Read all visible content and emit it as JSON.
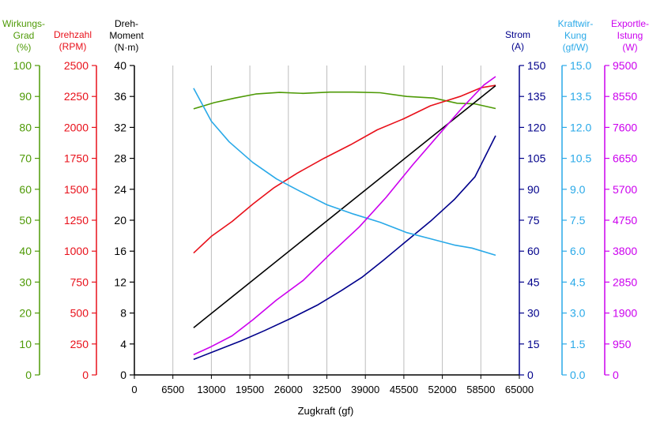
{
  "chart_data": {
    "type": "line",
    "xlabel": "Zugkraft (gf)",
    "xlim": [
      0,
      65000
    ],
    "xticks": [
      "0",
      "6500",
      "13000",
      "19500",
      "26000",
      "32500",
      "39000",
      "45500",
      "52000",
      "58500",
      "65000"
    ],
    "grid": "vertical",
    "axes": [
      {
        "id": "wirkungsgrad",
        "title": [
          "Wirkungs-",
          "Grad",
          "(%)"
        ],
        "color": "#4e9a06",
        "min": 0,
        "max": 100,
        "ticks": [
          "0",
          "10",
          "20",
          "30",
          "40",
          "50",
          "60",
          "70",
          "80",
          "90",
          "100"
        ]
      },
      {
        "id": "drehzahl",
        "title": [
          "Drehzahl",
          "(RPM)"
        ],
        "color": "#e8101a",
        "min": 0,
        "max": 2500,
        "ticks": [
          "0",
          "250",
          "500",
          "750",
          "1000",
          "1250",
          "1500",
          "1750",
          "2000",
          "2250",
          "2500"
        ]
      },
      {
        "id": "drehmoment",
        "title": [
          "Dreh-",
          "Moment",
          "(N·m)"
        ],
        "color": "#000000",
        "min": 0,
        "max": 40,
        "ticks": [
          "0",
          "4",
          "8",
          "12",
          "16",
          "20",
          "24",
          "28",
          "32",
          "36",
          "40"
        ]
      },
      {
        "id": "strom",
        "title": [
          "Strom",
          "(A)"
        ],
        "color": "#00008b",
        "min": 0,
        "max": 150,
        "ticks": [
          "0",
          "15",
          "30",
          "45",
          "60",
          "75",
          "90",
          "105",
          "120",
          "135",
          "150"
        ]
      },
      {
        "id": "kraftwirkung",
        "title": [
          "Kraftwir-",
          "Kung",
          "(gf/W)"
        ],
        "color": "#29a9e8",
        "min": 0,
        "max": 15,
        "ticks": [
          "0.0",
          "1.5",
          "3.0",
          "4.5",
          "6.0",
          "7.5",
          "9.0",
          "10.5",
          "12.0",
          "13.5",
          "15.0"
        ]
      },
      {
        "id": "exportleistung",
        "title": [
          "Exportle-",
          "Istung",
          "(W)"
        ],
        "color": "#cc00ee",
        "min": 0,
        "max": 9500,
        "ticks": [
          "0",
          "950",
          "1900",
          "2850",
          "3800",
          "4750",
          "5700",
          "6650",
          "7600",
          "8550",
          "9500"
        ]
      }
    ],
    "series": [
      {
        "axis": "wirkungsgrad",
        "color": "#4e9a06",
        "x": [
          10000,
          13500,
          17000,
          20500,
          24500,
          28500,
          33000,
          37000,
          41500,
          46000,
          50500,
          54500,
          57500,
          61000
        ],
        "y": [
          86,
          88,
          89.5,
          90.8,
          91.3,
          91,
          91.4,
          91.4,
          91.2,
          90,
          89.5,
          87.8,
          87.6,
          86.1
        ]
      },
      {
        "axis": "drehzahl",
        "color": "#e8101a",
        "x": [
          10000,
          13000,
          16500,
          20000,
          23500,
          27500,
          32000,
          36500,
          41000,
          45500,
          50000,
          55000,
          58500,
          61000
        ],
        "y": [
          985,
          1120,
          1240,
          1380,
          1510,
          1630,
          1750,
          1860,
          1980,
          2070,
          2175,
          2250,
          2320,
          2340
        ]
      },
      {
        "axis": "drehmoment",
        "color": "#000000",
        "x": [
          10000,
          61000
        ],
        "y": [
          6.1,
          37.4
        ]
      },
      {
        "axis": "strom",
        "color": "#00008b",
        "x": [
          10000,
          14000,
          18000,
          22000,
          26500,
          31000,
          35000,
          38500,
          42000,
          46000,
          50000,
          54000,
          57500,
          61000
        ],
        "y": [
          7.5,
          12,
          16.5,
          21.5,
          27.5,
          34,
          41,
          47.5,
          55.5,
          65,
          74.5,
          85,
          96,
          116
        ]
      },
      {
        "axis": "kraftwirkung",
        "color": "#29a9e8",
        "x": [
          10000,
          13000,
          16000,
          20000,
          24000,
          28000,
          32500,
          37000,
          41500,
          46000,
          50000,
          54000,
          57000,
          61000
        ],
        "y": [
          13.9,
          12.3,
          11.3,
          10.3,
          9.5,
          8.9,
          8.25,
          7.8,
          7.4,
          6.9,
          6.6,
          6.3,
          6.15,
          5.8
        ]
      },
      {
        "axis": "exportleistung",
        "color": "#cc00ee",
        "x": [
          10000,
          13000,
          16500,
          20000,
          24000,
          28500,
          33000,
          38000,
          42500,
          47000,
          51500,
          55500,
          59000,
          61000
        ],
        "y": [
          620,
          870,
          1200,
          1690,
          2300,
          2900,
          3700,
          4550,
          5450,
          6450,
          7400,
          8230,
          8900,
          9160
        ]
      }
    ]
  }
}
